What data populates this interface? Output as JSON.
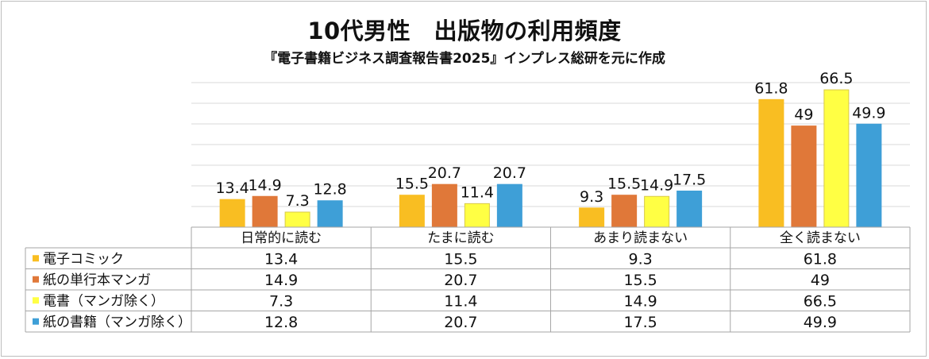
{
  "chart_data": {
    "type": "bar",
    "title": "10代男性　出版物の利用頻度",
    "subtitle": "『電子書籍ビジネス調査報告書2025』インプレス総研を元に作成",
    "categories": [
      "日常的に読む",
      "たまに読む",
      "あまり読まない",
      "全く読まない"
    ],
    "series": [
      {
        "name": "電子コミック",
        "values": [
          13.4,
          15.5,
          9.3,
          61.8
        ],
        "color": "#F9BE22"
      },
      {
        "name": "紙の単行本マンガ",
        "values": [
          14.9,
          20.7,
          15.5,
          49
        ],
        "color": "#E07839"
      },
      {
        "name": "電書（マンガ除く）",
        "values": [
          7.3,
          11.4,
          14.9,
          66.5
        ],
        "color": "#FFFF44"
      },
      {
        "name": "紙の書籍（マンガ除く）",
        "values": [
          12.8,
          20.7,
          17.5,
          49.9
        ],
        "color": "#3E9FD7"
      }
    ],
    "ylim": [
      0,
      70
    ],
    "grid": true,
    "legend": "data-table"
  }
}
